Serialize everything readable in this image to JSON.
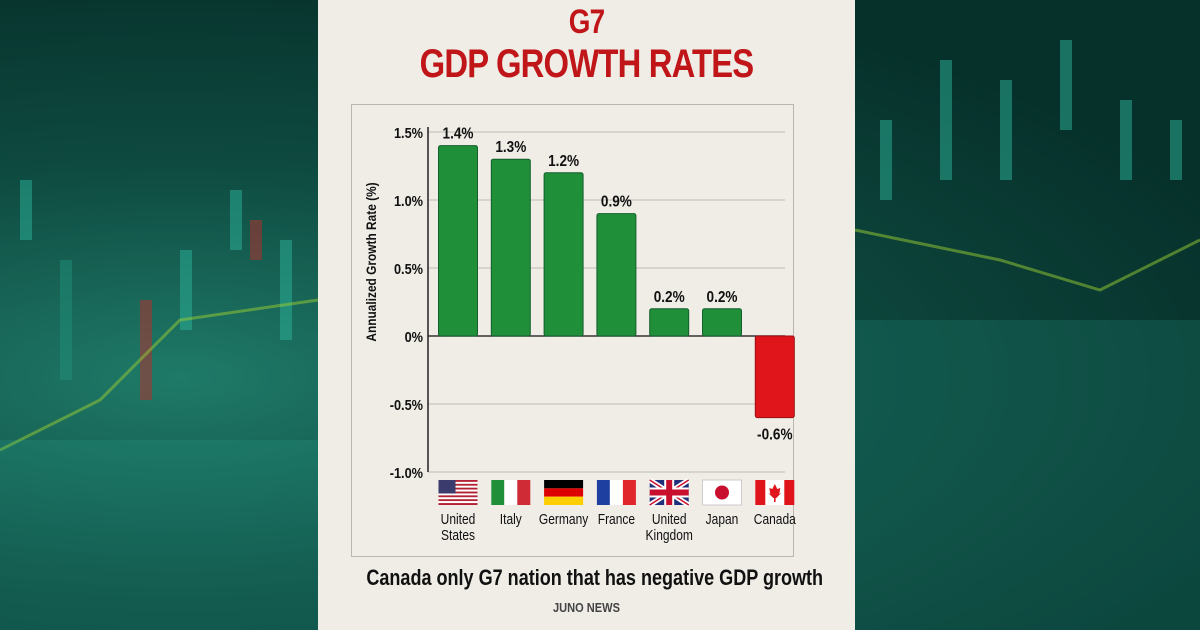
{
  "title_line1": "G7",
  "title_line2": "GDP GROWTH RATES",
  "caption": "Canada only G7 nation that has negative GDP growth",
  "source": "JUNO NEWS",
  "colors": {
    "positive": "#1f8f3a",
    "negative": "#e0151b",
    "title": "#c0161a",
    "panel": "#efede6"
  },
  "chart_data": {
    "type": "bar",
    "title": "G7 GDP GROWTH RATES",
    "ylabel": "Annualized Growth Rate (%)",
    "xlabel": "",
    "ylim": [
      -1.0,
      1.5
    ],
    "yticks": [
      1.5,
      1.0,
      0.5,
      0,
      -0.5,
      -1.0
    ],
    "ytick_labels": [
      "1.5%",
      "1.0%",
      "0.5%",
      "0%",
      "-0.5%",
      "-1.0%"
    ],
    "grid": true,
    "categories": [
      "United States",
      "Italy",
      "Germany",
      "France",
      "United Kingdom",
      "Japan",
      "Canada"
    ],
    "category_lines": [
      [
        "United",
        "States"
      ],
      [
        "Italy"
      ],
      [
        "Germany"
      ],
      [
        "France"
      ],
      [
        "United",
        "Kingdom"
      ],
      [
        "Japan"
      ],
      [
        "Canada"
      ]
    ],
    "flags": [
      "us-flag-icon",
      "italy-flag-icon",
      "germany-flag-icon",
      "france-flag-icon",
      "uk-flag-icon",
      "japan-flag-icon",
      "canada-flag-icon"
    ],
    "values": [
      1.4,
      1.3,
      1.2,
      0.9,
      0.2,
      0.2,
      -0.6
    ],
    "data_labels": [
      "1.4%",
      "1.3%",
      "1.2%",
      "0.9%",
      "0.2%",
      "0.2%",
      "-0.6%"
    ]
  }
}
